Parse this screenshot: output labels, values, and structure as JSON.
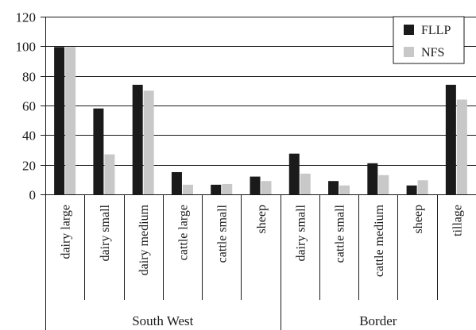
{
  "chart_data": {
    "type": "bar",
    "title": "",
    "xlabel": "",
    "ylabel": "",
    "ylim": [
      0,
      120
    ],
    "yticks": [
      0,
      20,
      40,
      60,
      80,
      100,
      120
    ],
    "grid": true,
    "legend_position": "top-right",
    "categories": [
      "dairy large",
      "dairy small",
      "dairy medium",
      "cattle large",
      "cattle small",
      "sheep",
      "dairy small",
      "cattle small",
      "cattle medium",
      "sheep",
      "tillage"
    ],
    "groups": [
      {
        "label": "South West",
        "start": 0,
        "end": 5
      },
      {
        "label": "Border",
        "start": 6,
        "end": 10
      }
    ],
    "series": [
      {
        "name": "FLLP",
        "color": "#1a1a1a",
        "values": [
          99.5,
          58,
          74,
          15,
          6.5,
          12,
          27.5,
          9,
          21,
          6,
          74
        ]
      },
      {
        "name": "NFS",
        "color": "#c8c8c8",
        "values": [
          99.5,
          27,
          70,
          6.5,
          7,
          9,
          14,
          6,
          13,
          9.5,
          64
        ]
      }
    ]
  }
}
